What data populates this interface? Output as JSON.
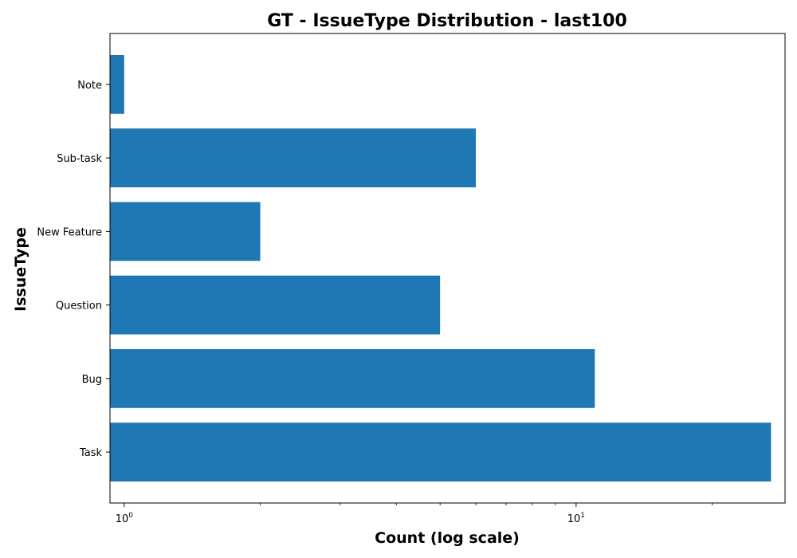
{
  "chart_data": {
    "type": "bar",
    "orientation": "horizontal",
    "title": "GT - IssueType Distribution - last100",
    "xlabel": "Count (log scale)",
    "ylabel": "IssueType",
    "x_scale": "log",
    "xlim": [
      0.93,
      29.0
    ],
    "categories": [
      "Task",
      "Bug",
      "Question",
      "New Feature",
      "Sub-task",
      "Note"
    ],
    "values": [
      27,
      11,
      5,
      2,
      6,
      1
    ],
    "x_major_ticks": [
      {
        "value": 1,
        "base": "10",
        "exp": "0"
      },
      {
        "value": 10,
        "base": "10",
        "exp": "1"
      }
    ],
    "x_minor_ticks": [
      2,
      3,
      4,
      5,
      6,
      7,
      8,
      9,
      20
    ],
    "bar_color": "#1f77b4",
    "grid": false,
    "legend": "none"
  }
}
